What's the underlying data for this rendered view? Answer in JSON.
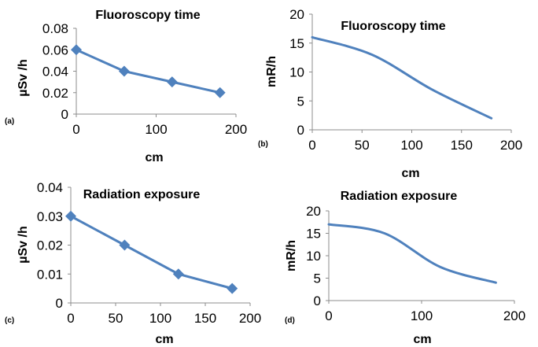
{
  "colors": {
    "series": "#4f81bd",
    "axis": "#8c8c8c"
  },
  "chart_data": [
    {
      "type": "line",
      "marker": "diamond",
      "title": "Fluoroscopy time",
      "panel_label": "(a)",
      "xlabel": "cm",
      "ylabel": "µSv /h",
      "x": [
        0,
        60,
        120,
        180
      ],
      "y": [
        0.06,
        0.04,
        0.03,
        0.02
      ],
      "xlim": [
        0,
        200
      ],
      "ylim": [
        0,
        0.08
      ],
      "xticks": [
        "0",
        "100",
        "200"
      ],
      "xtick_values": [
        0,
        100,
        200
      ],
      "yticks": [
        "0",
        "0.02",
        "0.04",
        "0.06",
        "0.08"
      ],
      "ytick_values": [
        0,
        0.02,
        0.04,
        0.06,
        0.08
      ],
      "grid": false
    },
    {
      "type": "line",
      "marker": "none",
      "smooth": true,
      "title": "Fluoroscopy time",
      "panel_label": "(b)",
      "xlabel": "cm",
      "ylabel": "mR/h",
      "x": [
        0,
        60,
        120,
        180
      ],
      "y": [
        16,
        13,
        7,
        2
      ],
      "xlim": [
        0,
        200
      ],
      "ylim": [
        0,
        20
      ],
      "xticks": [
        "0",
        "50",
        "100",
        "150",
        "200"
      ],
      "xtick_values": [
        0,
        50,
        100,
        150,
        200
      ],
      "yticks": [
        "0",
        "5",
        "10",
        "15",
        "20"
      ],
      "ytick_values": [
        0,
        5,
        10,
        15,
        20
      ],
      "grid": false
    },
    {
      "type": "line",
      "marker": "diamond",
      "title": "Radiation exposure",
      "panel_label": "(c)",
      "xlabel": "cm",
      "ylabel": "µSv /h",
      "x": [
        0,
        60,
        120,
        180
      ],
      "y": [
        0.03,
        0.02,
        0.01,
        0.005
      ],
      "xlim": [
        0,
        200
      ],
      "ylim": [
        0,
        0.04
      ],
      "xticks": [
        "0",
        "50",
        "100",
        "150",
        "200"
      ],
      "xtick_values": [
        0,
        50,
        100,
        150,
        200
      ],
      "yticks": [
        "0",
        "0.01",
        "0.02",
        "0.03",
        "0.04"
      ],
      "ytick_values": [
        0,
        0.01,
        0.02,
        0.03,
        0.04
      ],
      "grid": false
    },
    {
      "type": "line",
      "marker": "none",
      "smooth": true,
      "title": "Radiation exposure",
      "panel_label": "(d)",
      "xlabel": "cm",
      "ylabel": "mR/h",
      "x": [
        0,
        60,
        120,
        180
      ],
      "y": [
        17,
        15,
        7.5,
        4
      ],
      "xlim": [
        0,
        200
      ],
      "ylim": [
        0,
        20
      ],
      "xticks": [
        "0",
        "100",
        "200"
      ],
      "xtick_values": [
        0,
        100,
        200
      ],
      "yticks": [
        "0",
        "5",
        "10",
        "15",
        "20"
      ],
      "ytick_values": [
        0,
        5,
        10,
        15,
        20
      ],
      "grid": false
    }
  ]
}
